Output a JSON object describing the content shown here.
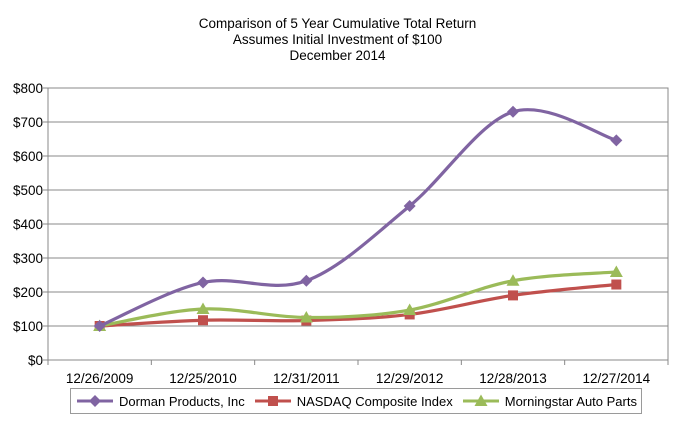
{
  "chart_data": {
    "type": "line",
    "title": "Comparison of 5 Year Cumulative Total Return",
    "subtitle_lines": [
      "Assumes Initial Investment of $100",
      "December 2014"
    ],
    "categories": [
      "12/26/2009",
      "12/25/2010",
      "12/31/2011",
      "12/29/2012",
      "12/28/2013",
      "12/27/2014"
    ],
    "yticks": [
      "$0",
      "$100",
      "$200",
      "$300",
      "$400",
      "$500",
      "$600",
      "$700",
      "$800"
    ],
    "ylim": [
      0,
      800
    ],
    "grid": true,
    "legend_position": "bottom",
    "series": [
      {
        "name": "Dorman Products, Inc",
        "values": [
          100,
          228,
          233,
          453,
          730,
          646
        ],
        "color": "#8064a2",
        "marker": "diamond"
      },
      {
        "name": "NASDAQ Composite Index",
        "values": [
          100,
          117,
          116,
          134,
          190,
          222
        ],
        "color": "#c0504d",
        "marker": "square"
      },
      {
        "name": "Morningstar Auto Parts",
        "values": [
          100,
          150,
          125,
          147,
          233,
          259
        ],
        "color": "#9bbb59",
        "marker": "triangle"
      }
    ]
  }
}
